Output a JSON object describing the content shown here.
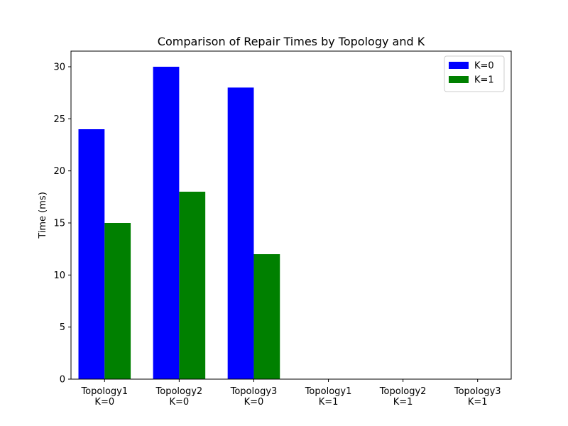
{
  "chart_data": {
    "type": "bar",
    "title": "Comparison of Repair Times by Topology and K",
    "xlabel": "",
    "ylabel": "Time (ms)",
    "ylim": [
      0,
      31.5
    ],
    "yticks": [
      0,
      5,
      10,
      15,
      20,
      25,
      30
    ],
    "categories": [
      [
        "Topology1",
        "K=0"
      ],
      [
        "Topology2",
        "K=0"
      ],
      [
        "Topology3",
        "K=0"
      ],
      [
        "Topology1",
        "K=1"
      ],
      [
        "Topology2",
        "K=1"
      ],
      [
        "Topology3",
        "K=1"
      ]
    ],
    "series": [
      {
        "name": "K=0",
        "color": "#0000ff",
        "values": [
          24,
          30,
          28,
          null,
          null,
          null
        ]
      },
      {
        "name": "K=1",
        "color": "#008000",
        "values": [
          15,
          18,
          12,
          null,
          null,
          null
        ]
      }
    ],
    "legend": "top-right",
    "grid": false
  }
}
